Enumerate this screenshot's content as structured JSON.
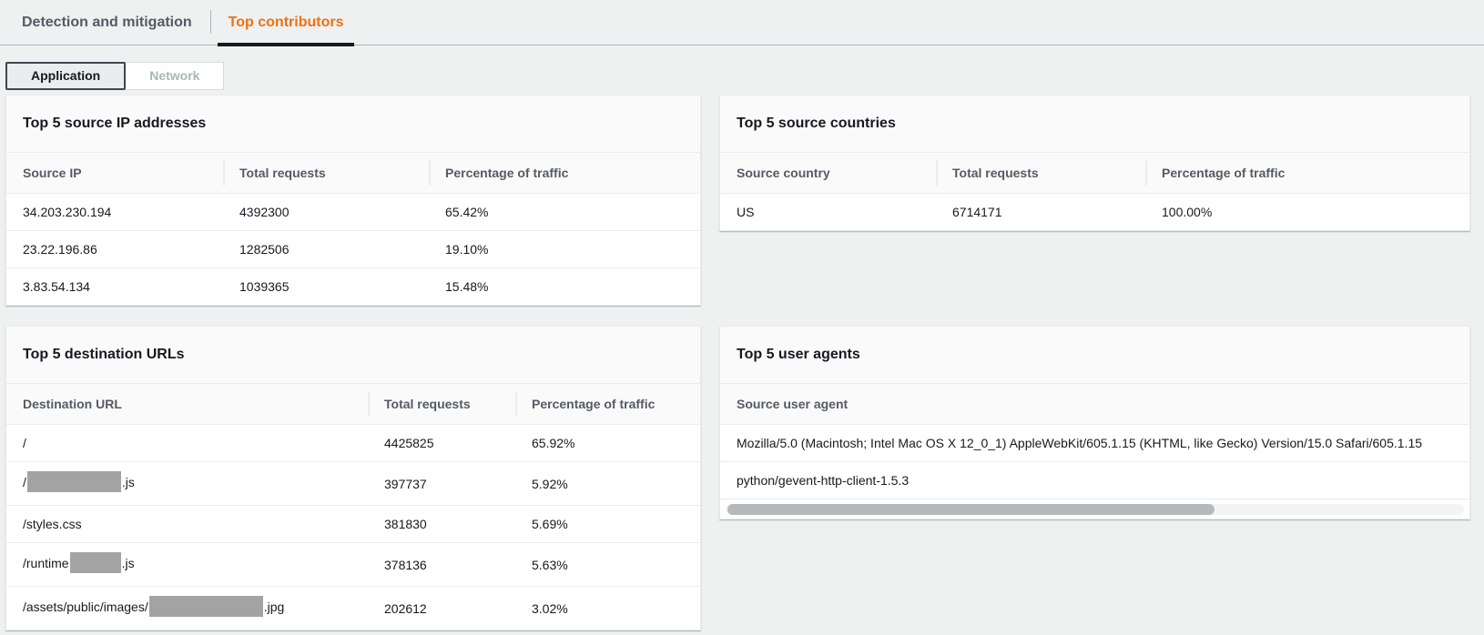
{
  "tabs": [
    {
      "label": "Detection and mitigation",
      "active": false
    },
    {
      "label": "Top contributors",
      "active": true
    }
  ],
  "view_toggle": [
    {
      "label": "Application",
      "active": true
    },
    {
      "label": "Network",
      "active": false
    }
  ],
  "colors": {
    "accent_orange": "#ec7211",
    "active_tab_underline": "#16191f",
    "redaction_gray": "#a3a3a3"
  },
  "panels": {
    "source_ips": {
      "title": "Top 5 source IP addresses",
      "columns": [
        "Source IP",
        "Total requests",
        "Percentage of traffic"
      ],
      "rows": [
        [
          "34.203.230.194",
          "4392300",
          "65.42%"
        ],
        [
          "23.22.196.86",
          "1282506",
          "19.10%"
        ],
        [
          "3.83.54.134",
          "1039365",
          "15.48%"
        ]
      ]
    },
    "source_countries": {
      "title": "Top 5 source countries",
      "columns": [
        "Source country",
        "Total requests",
        "Percentage of traffic"
      ],
      "rows": [
        [
          "US",
          "6714171",
          "100.00%"
        ]
      ]
    },
    "destination_urls": {
      "title": "Top 5 destination URLs",
      "columns": [
        "Destination URL",
        "Total requests",
        "Percentage of traffic"
      ],
      "rows": [
        {
          "url_prefix": "/",
          "url_suffix": "",
          "requests": "4425825",
          "pct": "65.92%"
        },
        {
          "url_prefix": "/",
          "url_suffix": ".js",
          "requests": "397737",
          "pct": "5.92%"
        },
        {
          "url_prefix": "/styles.css",
          "url_suffix": "",
          "requests": "381830",
          "pct": "5.69%"
        },
        {
          "url_prefix": "/runtime",
          "url_suffix": ".js",
          "requests": "378136",
          "pct": "5.63%"
        },
        {
          "url_prefix": "/assets/public/images/",
          "url_suffix": ".jpg",
          "requests": "202612",
          "pct": "3.02%"
        }
      ]
    },
    "user_agents": {
      "title": "Top 5 user agents",
      "columns": [
        "Source user agent"
      ],
      "rows": [
        "Mozilla/5.0 (Macintosh; Intel Mac OS X 12_0_1) AppleWebKit/605.1.15 (KHTML, like Gecko) Version/15.0 Safari/605.1.15",
        "python/gevent-http-client-1.5.3"
      ]
    }
  }
}
